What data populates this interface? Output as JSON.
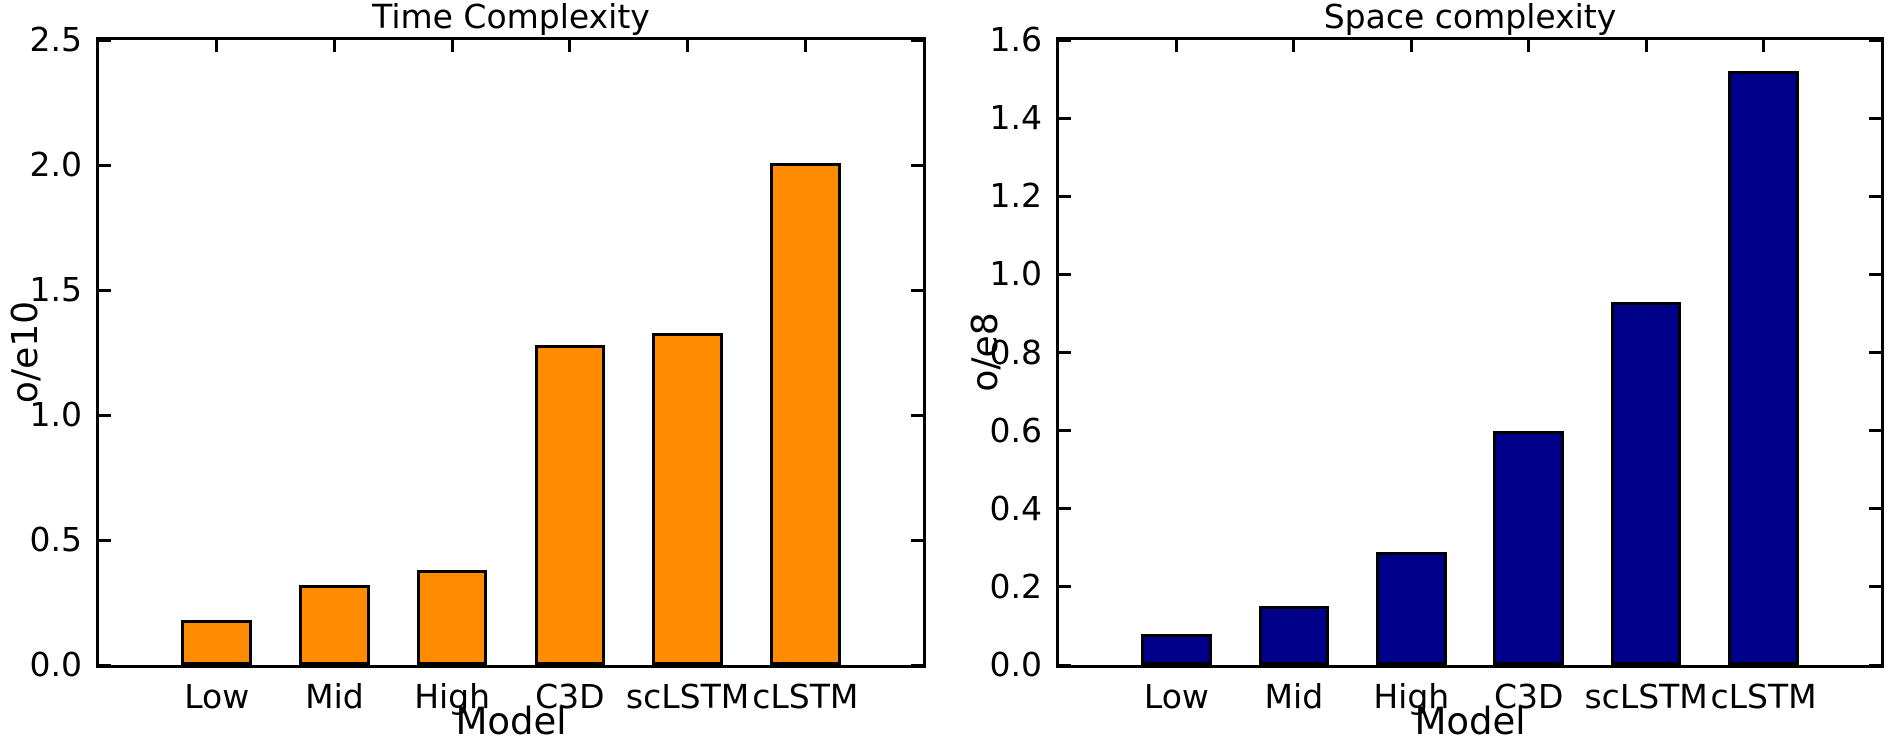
{
  "figure": {
    "background_color": "#ffffff",
    "text_color": "#000000"
  },
  "chart_data": [
    {
      "type": "bar",
      "title": "Time Complexity",
      "xlabel": "Model",
      "ylabel": "o/e10",
      "categories": [
        "Low",
        "Mid",
        "High",
        "C3D",
        "scLSTM",
        "cLSTM"
      ],
      "values": [
        0.18,
        0.32,
        0.38,
        1.28,
        1.33,
        2.01
      ],
      "ylim": [
        0,
        2.5
      ],
      "yticks": [
        "0.0",
        "0.5",
        "1.0",
        "1.5",
        "2.0",
        "2.5"
      ],
      "bar_color": "#FF8C00",
      "bar_edge_color": "#000000",
      "grid": false,
      "legend": "none",
      "tick_direction": "in"
    },
    {
      "type": "bar",
      "title": "Space complexity",
      "xlabel": "Model",
      "ylabel": "o/e8",
      "categories": [
        "Low",
        "Mid",
        "High",
        "C3D",
        "scLSTM",
        "cLSTM"
      ],
      "values": [
        0.08,
        0.15,
        0.29,
        0.6,
        0.93,
        1.52
      ],
      "ylim": [
        0,
        1.6
      ],
      "yticks": [
        "0.0",
        "0.2",
        "0.4",
        "0.6",
        "0.8",
        "1.0",
        "1.2",
        "1.4",
        "1.6"
      ],
      "bar_color": "#00008B",
      "bar_edge_color": "#000000",
      "grid": false,
      "legend": "none",
      "tick_direction": "in"
    }
  ]
}
